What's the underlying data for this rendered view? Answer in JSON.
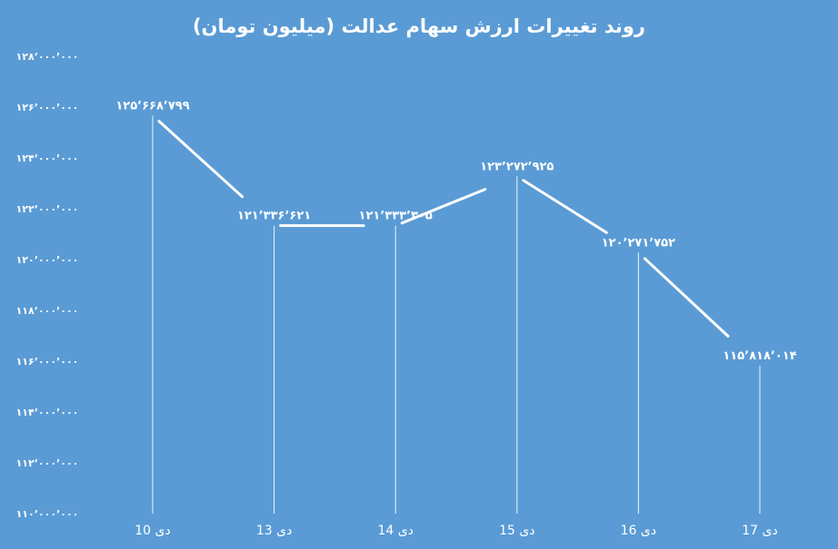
{
  "colors": {
    "background": "#5a9bd5",
    "foreground": "#ffffff"
  },
  "chart_data": {
    "type": "line",
    "title": "روند تغییرات ارزش سهام عدالت (میلیون تومان)",
    "xlabel": "",
    "ylabel": "",
    "categories": [
      "10 دی",
      "13 دی",
      "14 دی",
      "15 دی",
      "16 دی",
      "17 دی"
    ],
    "series": [
      {
        "values": [
          125668799,
          121336621,
          121333305,
          123272925,
          120271752,
          115818014
        ]
      }
    ],
    "data_labels": [
      "۱۲۵٬۶۶۸٬۷۹۹",
      "۱۲۱٬۳۳۶٬۶۲۱",
      "۱۲۱٬۳۳۳٬۳۰۵",
      "۱۲۳٬۲۷۲٬۹۲۵",
      "۱۲۰٬۲۷۱٬۷۵۲",
      "۱۱۵٬۸۱۸٬۰۱۴"
    ],
    "ylim": [
      110000000,
      128000000
    ],
    "y_ticks": [
      128000000,
      126000000,
      124000000,
      122000000,
      120000000,
      118000000,
      116000000,
      114000000,
      112000000,
      110000000
    ],
    "y_tick_labels": [
      "۱۲۸٬۰۰۰٬۰۰۰",
      "۱۲۶٬۰۰۰٬۰۰۰",
      "۱۲۴٬۰۰۰٬۰۰۰",
      "۱۲۲٬۰۰۰٬۰۰۰",
      "۱۲۰٬۰۰۰٬۰۰۰",
      "۱۱۸٬۰۰۰٬۰۰۰",
      "۱۱۶٬۰۰۰٬۰۰۰",
      "۱۱۴٬۰۰۰٬۰۰۰",
      "۱۱۲٬۰۰۰٬۰۰۰",
      "۱۱۰٬۰۰۰٬۰۰۰"
    ],
    "grid": false,
    "drop_lines": true,
    "legend": "none"
  }
}
